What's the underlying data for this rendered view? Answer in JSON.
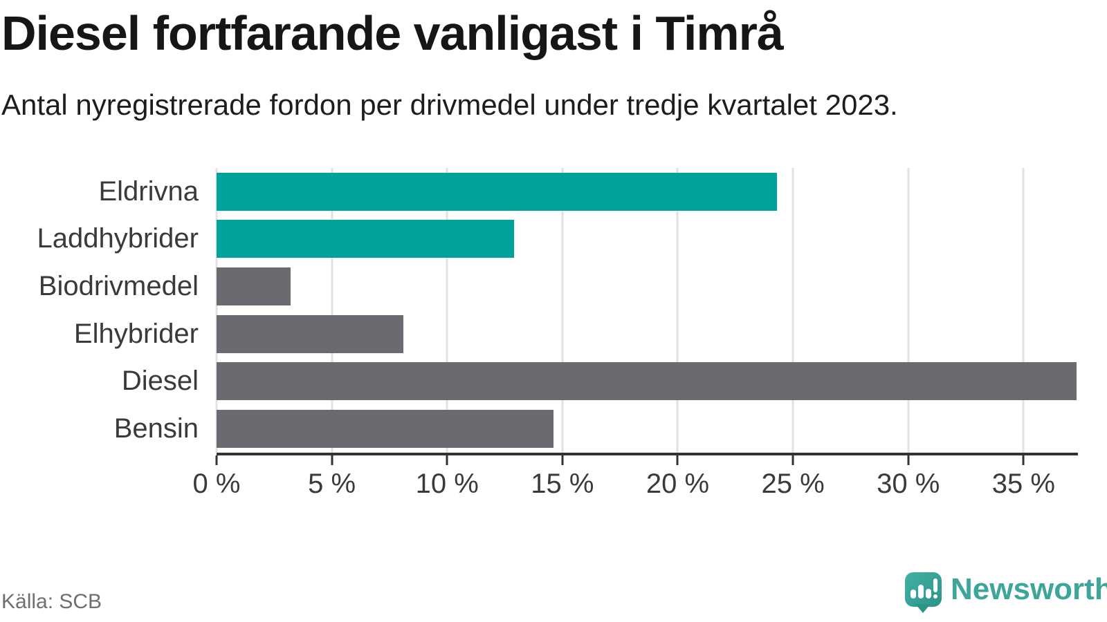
{
  "title": "Diesel fortfarande vanligast i Timrå",
  "subtitle": "Antal nyregistrerade fordon per drivmedel under tredje kvartalet 2023.",
  "source": "Källa: SCB",
  "brand": {
    "name": "Newsworthy"
  },
  "colors": {
    "teal": "#00a39b",
    "gray": "#6b6a70",
    "axis": "#333333",
    "gridline": "#e2e2e2",
    "brand": "#3ea59b",
    "text": "#3a3a3a"
  },
  "chart_data": {
    "type": "bar",
    "orientation": "horizontal",
    "title": "Diesel fortfarande vanligast i Timrå",
    "subtitle": "Antal nyregistrerade fordon per drivmedel under tredje kvartalet 2023.",
    "categories": [
      "Eldrivna",
      "Laddhybrider",
      "Biodrivmedel",
      "Elhybrider",
      "Diesel",
      "Bensin"
    ],
    "values": [
      24.3,
      12.9,
      3.2,
      8.1,
      37.3,
      14.6
    ],
    "unit": "%",
    "bar_colors": [
      "#00a39b",
      "#00a39b",
      "#6b6a70",
      "#6b6a70",
      "#6b6a70",
      "#6b6a70"
    ],
    "xlim": [
      0,
      37.3
    ],
    "xticks": [
      0,
      5,
      10,
      15,
      20,
      25,
      30,
      35
    ],
    "tick_suffix": " %",
    "grid": true,
    "legend": "none"
  }
}
